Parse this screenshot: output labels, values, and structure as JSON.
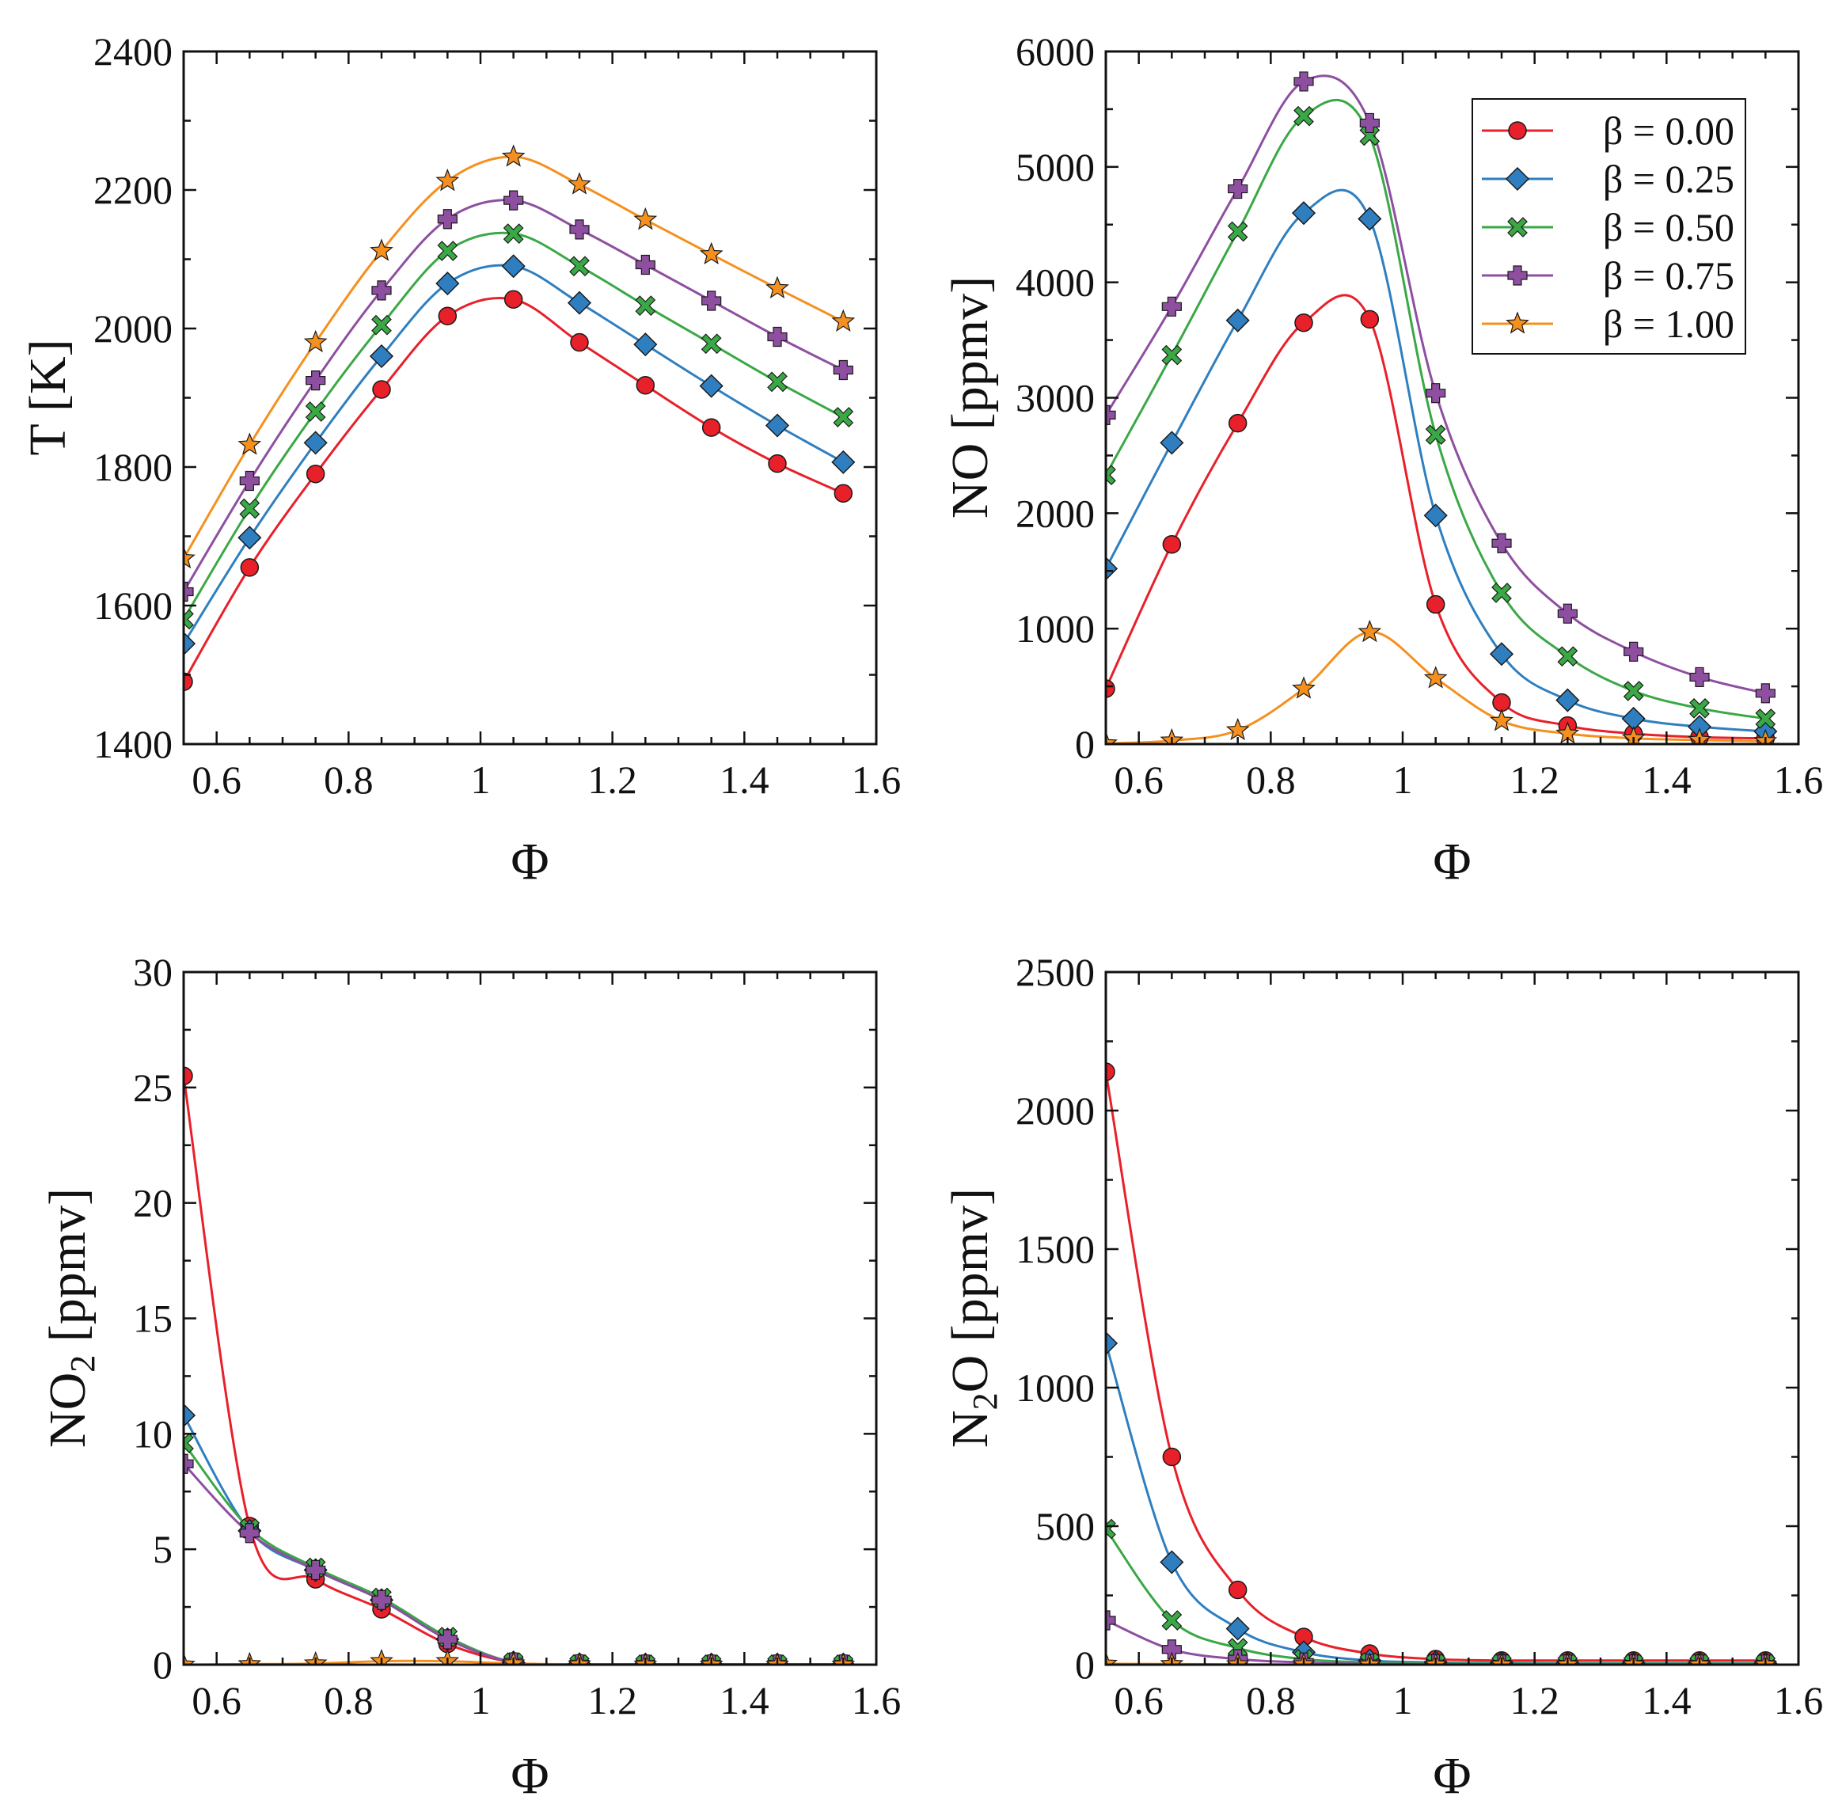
{
  "colors": {
    "b000": "#e8202a",
    "b025": "#2f7fc0",
    "b050": "#3aa845",
    "b075": "#8e4fa0",
    "b100": "#f5901f"
  },
  "legend": {
    "entries": [
      {
        "key": "b000",
        "label": "β = 0.00",
        "marker": "circle"
      },
      {
        "key": "b025",
        "label": "β = 0.25",
        "marker": "diamond"
      },
      {
        "key": "b050",
        "label": "β = 0.50",
        "marker": "x"
      },
      {
        "key": "b075",
        "label": "β = 0.75",
        "marker": "plus"
      },
      {
        "key": "b100",
        "label": "β = 1.00",
        "marker": "star"
      }
    ]
  },
  "chart_data": [
    {
      "type": "line",
      "name": "temperature",
      "xlabel": "Φ",
      "ylabel": "T [K]",
      "xlim": [
        0.55,
        1.6
      ],
      "ylim": [
        1400,
        2400
      ],
      "xticks": [
        0.6,
        0.8,
        1,
        1.2,
        1.4,
        1.6
      ],
      "xtick_labels": [
        "0.6",
        "0.8",
        "1",
        "1.2",
        "1.4",
        "1.6"
      ],
      "yticks": [
        1400,
        1600,
        1800,
        2000,
        2200,
        2400
      ],
      "ytick_labels": [
        "1400",
        "1600",
        "1800",
        "2000",
        "2200",
        "2400"
      ],
      "x": [
        0.55,
        0.65,
        0.75,
        0.85,
        0.95,
        1.05,
        1.15,
        1.25,
        1.35,
        1.45,
        1.55
      ],
      "series": [
        {
          "name": "β = 0.00",
          "key": "b000",
          "values": [
            1490,
            1655,
            1790,
            1912,
            2018,
            2042,
            1980,
            1918,
            1857,
            1805,
            1762
          ]
        },
        {
          "name": "β = 0.25",
          "key": "b025",
          "values": [
            1545,
            1698,
            1835,
            1960,
            2065,
            2090,
            2037,
            1977,
            1917,
            1860,
            1807
          ]
        },
        {
          "name": "β = 0.50",
          "key": "b050",
          "values": [
            1580,
            1740,
            1880,
            2005,
            2112,
            2137,
            2090,
            2033,
            1978,
            1923,
            1872
          ]
        },
        {
          "name": "β = 0.75",
          "key": "b075",
          "values": [
            1620,
            1780,
            1925,
            2055,
            2158,
            2185,
            2143,
            2092,
            2040,
            1988,
            1940
          ]
        },
        {
          "name": "β = 1.00",
          "key": "b100",
          "values": [
            1668,
            1832,
            1980,
            2112,
            2213,
            2248,
            2208,
            2157,
            2107,
            2058,
            2010
          ]
        }
      ]
    },
    {
      "type": "line",
      "name": "no",
      "xlabel": "Φ",
      "ylabel": "NO [ppmv]",
      "xlim": [
        0.55,
        1.6
      ],
      "ylim": [
        0,
        6000
      ],
      "xticks": [
        0.6,
        0.8,
        1,
        1.2,
        1.4,
        1.6
      ],
      "xtick_labels": [
        "0.6",
        "0.8",
        "1",
        "1.2",
        "1.4",
        "1.6"
      ],
      "yticks": [
        0,
        1000,
        2000,
        3000,
        4000,
        5000,
        6000
      ],
      "ytick_labels": [
        "0",
        "1000",
        "2000",
        "3000",
        "4000",
        "5000",
        "6000"
      ],
      "x": [
        0.55,
        0.65,
        0.75,
        0.85,
        0.95,
        1.05,
        1.15,
        1.25,
        1.35,
        1.45,
        1.55
      ],
      "series": [
        {
          "name": "β = 0.00",
          "key": "b000",
          "values": [
            480,
            1730,
            2780,
            3650,
            3680,
            1210,
            360,
            160,
            90,
            60,
            50
          ]
        },
        {
          "name": "β = 0.25",
          "key": "b025",
          "values": [
            1520,
            2610,
            3670,
            4600,
            4550,
            1980,
            780,
            380,
            220,
            150,
            110
          ]
        },
        {
          "name": "β = 0.50",
          "key": "b050",
          "values": [
            2330,
            3370,
            4440,
            5440,
            5270,
            2680,
            1310,
            760,
            460,
            310,
            220
          ]
        },
        {
          "name": "β = 0.75",
          "key": "b075",
          "values": [
            2850,
            3790,
            4810,
            5740,
            5380,
            3040,
            1740,
            1130,
            800,
            580,
            440
          ]
        },
        {
          "name": "β = 1.00",
          "key": "b100",
          "values": [
            5,
            30,
            120,
            480,
            970,
            570,
            200,
            90,
            50,
            35,
            25
          ]
        }
      ],
      "legend_position": "top-right"
    },
    {
      "type": "line",
      "name": "no2",
      "xlabel": "Φ",
      "ylabel_main": "NO",
      "ylabel_sub": "2",
      "ylabel_tail": " [ppmv]",
      "xlim": [
        0.55,
        1.6
      ],
      "ylim": [
        0,
        30
      ],
      "xticks": [
        0.6,
        0.8,
        1,
        1.2,
        1.4,
        1.6
      ],
      "xtick_labels": [
        "0.6",
        "0.8",
        "1",
        "1.2",
        "1.4",
        "1.6"
      ],
      "yticks": [
        0,
        5,
        10,
        15,
        20,
        25,
        30
      ],
      "ytick_labels": [
        "0",
        "5",
        "10",
        "15",
        "20",
        "25",
        "30"
      ],
      "x": [
        0.55,
        0.65,
        0.75,
        0.85,
        0.95,
        1.05,
        1.15,
        1.25,
        1.35,
        1.45,
        1.55
      ],
      "series": [
        {
          "name": "β = 0.00",
          "key": "b000",
          "values": [
            25.5,
            6.0,
            3.7,
            2.4,
            0.9,
            0.1,
            0.02,
            0.01,
            0.01,
            0.01,
            0.01
          ]
        },
        {
          "name": "β = 0.25",
          "key": "b025",
          "values": [
            10.8,
            5.8,
            4.1,
            2.8,
            1.1,
            0.1,
            0.02,
            0.01,
            0.01,
            0.01,
            0.01
          ]
        },
        {
          "name": "β = 0.50",
          "key": "b050",
          "values": [
            9.6,
            5.9,
            4.2,
            2.9,
            1.2,
            0.1,
            0.02,
            0.01,
            0.01,
            0.01,
            0.01
          ]
        },
        {
          "name": "β = 0.75",
          "key": "b075",
          "values": [
            8.7,
            5.7,
            4.1,
            2.8,
            1.1,
            0.1,
            0.02,
            0.01,
            0.01,
            0.01,
            0.01
          ]
        },
        {
          "name": "β = 1.00",
          "key": "b100",
          "values": [
            0.0,
            0.02,
            0.05,
            0.15,
            0.15,
            0.05,
            0.01,
            0.0,
            0.0,
            0.0,
            0.0
          ]
        }
      ]
    },
    {
      "type": "line",
      "name": "n2o",
      "xlabel": "Φ",
      "ylabel_main": "N",
      "ylabel_sub": "2",
      "ylabel_tail": "O [ppmv]",
      "xlim": [
        0.55,
        1.6
      ],
      "ylim": [
        0,
        2500
      ],
      "xticks": [
        0.6,
        0.8,
        1,
        1.2,
        1.4,
        1.6
      ],
      "xtick_labels": [
        "0.6",
        "0.8",
        "1",
        "1.2",
        "1.4",
        "1.6"
      ],
      "yticks": [
        0,
        500,
        1000,
        1500,
        2000,
        2500
      ],
      "ytick_labels": [
        "0",
        "500",
        "1000",
        "1500",
        "2000",
        "2500"
      ],
      "x": [
        0.55,
        0.65,
        0.75,
        0.85,
        0.95,
        1.05,
        1.15,
        1.25,
        1.35,
        1.45,
        1.55
      ],
      "series": [
        {
          "name": "β = 0.00",
          "key": "b000",
          "values": [
            2140,
            750,
            270,
            100,
            40,
            20,
            15,
            15,
            15,
            15,
            15
          ]
        },
        {
          "name": "β = 0.25",
          "key": "b025",
          "values": [
            1160,
            370,
            130,
            45,
            15,
            8,
            6,
            5,
            5,
            5,
            5
          ]
        },
        {
          "name": "β = 0.50",
          "key": "b050",
          "values": [
            490,
            160,
            60,
            20,
            8,
            4,
            3,
            3,
            3,
            3,
            3
          ]
        },
        {
          "name": "β = 0.75",
          "key": "b075",
          "values": [
            160,
            55,
            20,
            8,
            3,
            2,
            1,
            1,
            1,
            1,
            1
          ]
        },
        {
          "name": "β = 1.00",
          "key": "b100",
          "values": [
            3,
            2,
            1,
            1,
            0,
            0,
            0,
            0,
            0,
            0,
            0
          ]
        }
      ]
    }
  ]
}
